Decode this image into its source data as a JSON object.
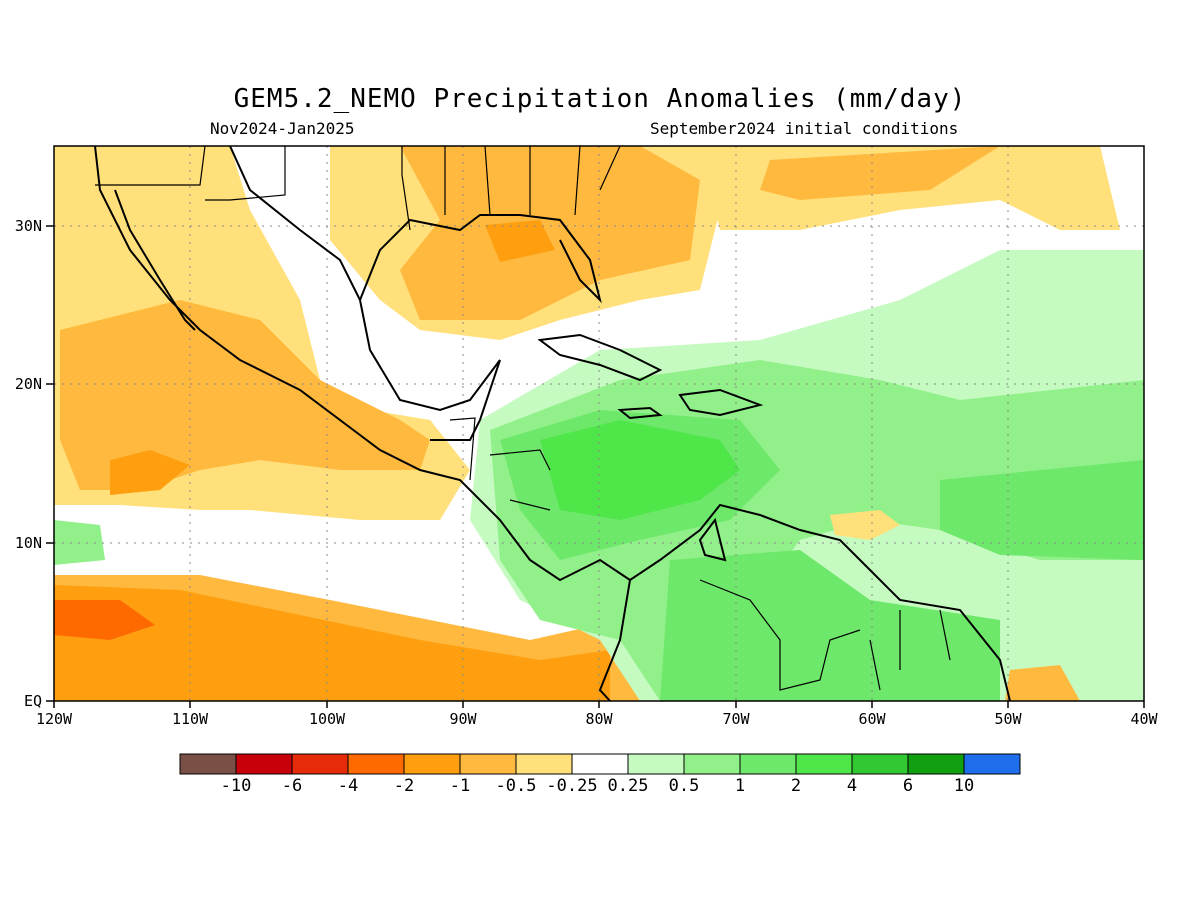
{
  "header": {
    "title": "GEM5.2_NEMO Precipitation Anomalies (mm/day)",
    "period": "Nov2024-Jan2025",
    "init": "September2024 initial conditions"
  },
  "axes": {
    "lat_labels": [
      "30N",
      "20N",
      "10N",
      "EQ"
    ],
    "lon_labels": [
      "120W",
      "110W",
      "100W",
      "90W",
      "80W",
      "70W",
      "60W",
      "50W",
      "40W"
    ]
  },
  "colorbar": {
    "colors": [
      "#7a4f46",
      "#c8000a",
      "#e62b0a",
      "#ff6a00",
      "#ff9f10",
      "#ffb93f",
      "#ffe07a",
      "#ffffff",
      "#c5fbc0",
      "#92f08a",
      "#6ee86a",
      "#4fe64a",
      "#32c832",
      "#12a012",
      "#1e6eec"
    ],
    "labels": [
      "-10",
      "-6",
      "-4",
      "-2",
      "-1",
      "-0.5",
      "-0.25",
      "0.25",
      "0.5",
      "1",
      "2",
      "4",
      "6",
      "10"
    ]
  }
}
